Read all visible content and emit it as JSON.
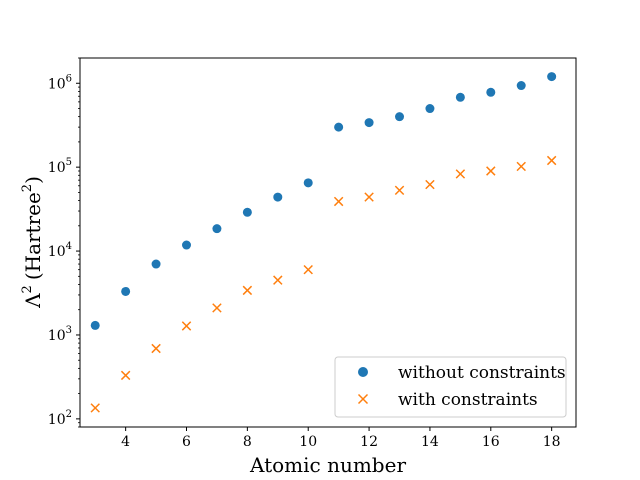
{
  "chart_data": {
    "type": "scatter",
    "title": "",
    "xlabel": "Atomic number",
    "ylabel": "Λ² (Hartree²)",
    "ylabel_main": "Λ",
    "ylabel_units": "(Hartree",
    "ylabel_close": ")",
    "superscript": "2",
    "xscale": "linear",
    "yscale": "log",
    "xlim": [
      2.5,
      18.8
    ],
    "ylim": [
      80,
      2000000
    ],
    "xticks": [
      4,
      6,
      8,
      10,
      12,
      14,
      16,
      18
    ],
    "xtick_labels": [
      "4",
      "6",
      "8",
      "10",
      "12",
      "14",
      "16",
      "18"
    ],
    "yticks": [
      100,
      1000,
      10000,
      100000,
      1000000
    ],
    "ytick_base": "10",
    "ytick_exponents": [
      "2",
      "3",
      "4",
      "5",
      "6"
    ],
    "legend_position": "lower-right",
    "series": [
      {
        "name": "without constraints",
        "marker": "circle",
        "color": "#1f77b4",
        "x": [
          3,
          4,
          5,
          6,
          7,
          8,
          9,
          10,
          11,
          12,
          13,
          14,
          15,
          16,
          17,
          18
        ],
        "values": [
          1300,
          3300,
          7000,
          11800,
          18500,
          29000,
          44000,
          65000,
          300000,
          340000,
          400000,
          500000,
          680000,
          780000,
          940000,
          1200000
        ]
      },
      {
        "name": "with constraints",
        "marker": "x",
        "color": "#ff7f0e",
        "x": [
          3,
          4,
          5,
          6,
          7,
          8,
          9,
          10,
          11,
          12,
          13,
          14,
          15,
          16,
          17,
          18
        ],
        "values": [
          135,
          330,
          690,
          1280,
          2100,
          3400,
          4500,
          6000,
          39000,
          44000,
          53000,
          62000,
          83000,
          90000,
          102000,
          120000
        ]
      }
    ]
  }
}
